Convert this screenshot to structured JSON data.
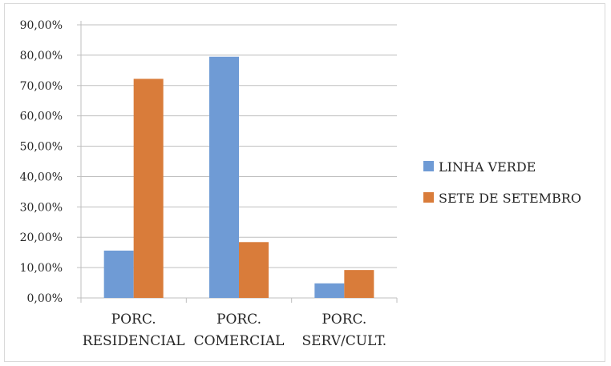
{
  "chart_data": {
    "type": "bar",
    "categories": [
      [
        "PORC.",
        "RESIDENCIAL"
      ],
      [
        "PORC.",
        "COMERCIAL"
      ],
      [
        "PORC.",
        "SERV/CULT."
      ]
    ],
    "series": [
      {
        "name": "LINHA VERDE",
        "color": "#6f9bd5",
        "values": [
          15.6,
          79.5,
          4.8
        ]
      },
      {
        "name": "SETE DE SETEMBRO",
        "color": "#d97c3a",
        "values": [
          72.2,
          18.4,
          9.2
        ]
      }
    ],
    "ylim": [
      0,
      90
    ],
    "yticks": [
      0,
      10,
      20,
      30,
      40,
      50,
      60,
      70,
      80,
      90
    ],
    "ytick_labels": [
      "0,00%",
      "10,00%",
      "20,00%",
      "30,00%",
      "40,00%",
      "50,00%",
      "60,00%",
      "70,00%",
      "80,00%",
      "90,00%"
    ],
    "grid": true,
    "legend": "right"
  }
}
